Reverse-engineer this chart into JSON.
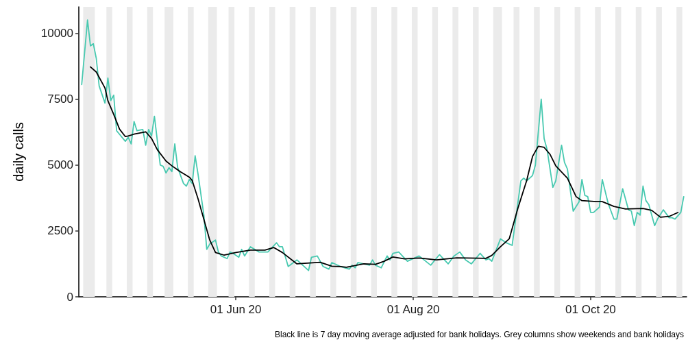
{
  "chart_data": {
    "type": "line",
    "ylabel": "daily calls",
    "annotations": [
      "Black line is 7 day moving average adjusted for bank holidays. Grey columns show weekends and bank holidays"
    ],
    "xlim": [
      "2020-04-08",
      "2020-11-03"
    ],
    "xticks": [
      {
        "value": "2020-06-01",
        "label": "01 Jun 20"
      },
      {
        "value": "2020-08-01",
        "label": "01 Aug 20"
      },
      {
        "value": "2020-10-01",
        "label": "01 Oct 20"
      }
    ],
    "ylim": [
      0,
      11000
    ],
    "yticks": [
      0,
      2500,
      5000,
      7500,
      10000
    ],
    "grid": false,
    "marker": "none",
    "line_style": "solid",
    "series": [
      {
        "color": "#48c9b0",
        "x": [
          "2020-04-09",
          "2020-04-11",
          "2020-04-12",
          "2020-04-13",
          "2020-04-14",
          "2020-04-15",
          "2020-04-17",
          "2020-04-18",
          "2020-04-19",
          "2020-04-20",
          "2020-04-21",
          "2020-04-24",
          "2020-04-25",
          "2020-04-26",
          "2020-04-27",
          "2020-04-28",
          "2020-04-30",
          "2020-05-01",
          "2020-05-02",
          "2020-05-03",
          "2020-05-04",
          "2020-05-06",
          "2020-05-07",
          "2020-05-08",
          "2020-05-09",
          "2020-05-10",
          "2020-05-11",
          "2020-05-12",
          "2020-05-14",
          "2020-05-15",
          "2020-05-16",
          "2020-05-17",
          "2020-05-18",
          "2020-05-19",
          "2020-05-21",
          "2020-05-22",
          "2020-05-23",
          "2020-05-25",
          "2020-05-26",
          "2020-05-27",
          "2020-05-29",
          "2020-05-30",
          "2020-05-31",
          "2020-06-02",
          "2020-06-03",
          "2020-06-04",
          "2020-06-06",
          "2020-06-09",
          "2020-06-12",
          "2020-06-15",
          "2020-06-16",
          "2020-06-17",
          "2020-06-19",
          "2020-06-22",
          "2020-06-26",
          "2020-06-27",
          "2020-06-29",
          "2020-07-01",
          "2020-07-03",
          "2020-07-04",
          "2020-07-07",
          "2020-07-10",
          "2020-07-11",
          "2020-07-12",
          "2020-07-13",
          "2020-07-17",
          "2020-07-18",
          "2020-07-19",
          "2020-07-21",
          "2020-07-23",
          "2020-07-24",
          "2020-07-25",
          "2020-07-27",
          "2020-07-30",
          "2020-07-31",
          "2020-08-03",
          "2020-08-07",
          "2020-08-10",
          "2020-08-13",
          "2020-08-15",
          "2020-08-17",
          "2020-08-19",
          "2020-08-21",
          "2020-08-24",
          "2020-08-26",
          "2020-08-27",
          "2020-08-28",
          "2020-08-31",
          "2020-09-02",
          "2020-09-04",
          "2020-09-07",
          "2020-09-08",
          "2020-09-09",
          "2020-09-11",
          "2020-09-12",
          "2020-09-14",
          "2020-09-15",
          "2020-09-16",
          "2020-09-18",
          "2020-09-19",
          "2020-09-21",
          "2020-09-22",
          "2020-09-23",
          "2020-09-25",
          "2020-09-27",
          "2020-09-28",
          "2020-09-29",
          "2020-09-30",
          "2020-10-01",
          "2020-10-02",
          "2020-10-04",
          "2020-10-05",
          "2020-10-07",
          "2020-10-09",
          "2020-10-10",
          "2020-10-12",
          "2020-10-14",
          "2020-10-15",
          "2020-10-16",
          "2020-10-17",
          "2020-10-18",
          "2020-10-19",
          "2020-10-20",
          "2020-10-21",
          "2020-10-23",
          "2020-10-24",
          "2020-10-26",
          "2020-10-28",
          "2020-10-29",
          "2020-10-30",
          "2020-11-01",
          "2020-11-02"
        ],
        "values": [
          8050,
          10500,
          9520,
          9600,
          9050,
          8000,
          7350,
          8300,
          7450,
          7650,
          6300,
          5900,
          6050,
          5800,
          6650,
          6300,
          6350,
          5750,
          6350,
          6100,
          6850,
          5000,
          4950,
          4700,
          4900,
          4750,
          5800,
          4900,
          4300,
          4200,
          4450,
          4300,
          5350,
          4650,
          3100,
          1800,
          2000,
          2150,
          1700,
          1550,
          1450,
          1700,
          1650,
          1500,
          1800,
          1550,
          1900,
          1700,
          1700,
          2050,
          1900,
          1900,
          1150,
          1400,
          1000,
          1500,
          1550,
          1150,
          1050,
          1300,
          1150,
          1050,
          1200,
          1100,
          1300,
          1200,
          1400,
          1200,
          1100,
          1550,
          1400,
          1650,
          1700,
          1350,
          1400,
          1550,
          1200,
          1600,
          1250,
          1550,
          1700,
          1400,
          1250,
          1650,
          1400,
          1450,
          1350,
          2200,
          2050,
          1950,
          4400,
          4500,
          4400,
          4600,
          5000,
          7500,
          6000,
          5600,
          4150,
          4400,
          5750,
          5100,
          4850,
          3250,
          3600,
          4450,
          3850,
          3800,
          3200,
          3200,
          3400,
          4450,
          3550,
          2950,
          2950,
          4100,
          3300,
          3250,
          2700,
          3200,
          3100,
          4200,
          3650,
          3500,
          2700,
          2950,
          3300,
          3000,
          3000,
          2950,
          3200,
          3800
        ]
      },
      {
        "color": "#000000",
        "x": [
          "2020-04-12",
          "2020-04-14",
          "2020-04-17",
          "2020-04-18",
          "2020-04-20",
          "2020-04-22",
          "2020-04-24",
          "2020-04-25",
          "2020-04-27",
          "2020-05-01",
          "2020-05-03",
          "2020-05-05",
          "2020-05-08",
          "2020-05-10",
          "2020-05-13",
          "2020-05-16",
          "2020-05-17",
          "2020-05-19",
          "2020-05-21",
          "2020-05-23",
          "2020-05-25",
          "2020-05-28",
          "2020-06-01",
          "2020-06-06",
          "2020-06-11",
          "2020-06-14",
          "2020-06-17",
          "2020-06-22",
          "2020-06-30",
          "2020-07-04",
          "2020-07-07",
          "2020-07-09",
          "2020-07-15",
          "2020-07-19",
          "2020-07-22",
          "2020-07-25",
          "2020-07-29",
          "2020-08-03",
          "2020-08-09",
          "2020-08-16",
          "2020-08-26",
          "2020-08-28",
          "2020-08-31",
          "2020-09-03",
          "2020-09-06",
          "2020-09-09",
          "2020-09-11",
          "2020-09-13",
          "2020-09-15",
          "2020-09-17",
          "2020-09-19",
          "2020-09-23",
          "2020-09-26",
          "2020-09-28",
          "2020-10-03",
          "2020-10-05",
          "2020-10-09",
          "2020-10-13",
          "2020-10-19",
          "2020-10-22",
          "2020-10-25",
          "2020-10-28",
          "2020-10-31"
        ],
        "values": [
          8720,
          8530,
          7920,
          7440,
          6920,
          6360,
          6080,
          6100,
          6170,
          6260,
          6010,
          5580,
          5150,
          4970,
          4740,
          4540,
          4410,
          3720,
          2940,
          2160,
          1680,
          1580,
          1680,
          1770,
          1770,
          1870,
          1680,
          1250,
          1310,
          1160,
          1150,
          1120,
          1250,
          1230,
          1350,
          1510,
          1440,
          1470,
          1400,
          1480,
          1460,
          1570,
          1900,
          2200,
          3370,
          4410,
          5320,
          5710,
          5670,
          5410,
          4970,
          4500,
          3800,
          3650,
          3610,
          3610,
          3430,
          3330,
          3350,
          3280,
          3020,
          3050,
          3200
        ]
      }
    ],
    "bands": [
      {
        "axis": "x",
        "from": "2020-04-09T12:00",
        "to": "2020-04-13T12:00",
        "color": "#ebebeb"
      },
      {
        "axis": "x",
        "from": "2020-04-17T12:00",
        "to": "2020-04-19T12:00",
        "color": "#ebebeb"
      },
      {
        "axis": "x",
        "from": "2020-04-24T12:00",
        "to": "2020-04-26T12:00",
        "color": "#ebebeb"
      },
      {
        "axis": "x",
        "from": "2020-05-01T12:00",
        "to": "2020-05-03T12:00",
        "color": "#ebebeb"
      },
      {
        "axis": "x",
        "from": "2020-05-07T12:00",
        "to": "2020-05-10T12:00",
        "color": "#ebebeb"
      },
      {
        "axis": "x",
        "from": "2020-05-15T12:00",
        "to": "2020-05-17T12:00",
        "color": "#ebebeb"
      },
      {
        "axis": "x",
        "from": "2020-05-22T12:00",
        "to": "2020-05-25T12:00",
        "color": "#ebebeb"
      },
      {
        "axis": "x",
        "from": "2020-05-29T12:00",
        "to": "2020-05-31T12:00",
        "color": "#ebebeb"
      },
      {
        "axis": "x",
        "from": "2020-06-05T12:00",
        "to": "2020-06-07T12:00",
        "color": "#ebebeb"
      },
      {
        "axis": "x",
        "from": "2020-06-12T12:00",
        "to": "2020-06-14T12:00",
        "color": "#ebebeb"
      },
      {
        "axis": "x",
        "from": "2020-06-19T12:00",
        "to": "2020-06-21T12:00",
        "color": "#ebebeb"
      },
      {
        "axis": "x",
        "from": "2020-06-26T12:00",
        "to": "2020-06-28T12:00",
        "color": "#ebebeb"
      },
      {
        "axis": "x",
        "from": "2020-07-03T12:00",
        "to": "2020-07-05T12:00",
        "color": "#ebebeb"
      },
      {
        "axis": "x",
        "from": "2020-07-10T12:00",
        "to": "2020-07-12T12:00",
        "color": "#ebebeb"
      },
      {
        "axis": "x",
        "from": "2020-07-17T12:00",
        "to": "2020-07-19T12:00",
        "color": "#ebebeb"
      },
      {
        "axis": "x",
        "from": "2020-07-24T12:00",
        "to": "2020-07-26T12:00",
        "color": "#ebebeb"
      },
      {
        "axis": "x",
        "from": "2020-07-31T12:00",
        "to": "2020-08-02T12:00",
        "color": "#ebebeb"
      },
      {
        "axis": "x",
        "from": "2020-08-07T12:00",
        "to": "2020-08-09T12:00",
        "color": "#ebebeb"
      },
      {
        "axis": "x",
        "from": "2020-08-14T12:00",
        "to": "2020-08-16T12:00",
        "color": "#ebebeb"
      },
      {
        "axis": "x",
        "from": "2020-08-21T12:00",
        "to": "2020-08-23T12:00",
        "color": "#ebebeb"
      },
      {
        "axis": "x",
        "from": "2020-08-28T12:00",
        "to": "2020-08-31T12:00",
        "color": "#ebebeb"
      },
      {
        "axis": "x",
        "from": "2020-09-04T12:00",
        "to": "2020-09-06T12:00",
        "color": "#ebebeb"
      },
      {
        "axis": "x",
        "from": "2020-09-11T12:00",
        "to": "2020-09-13T12:00",
        "color": "#ebebeb"
      },
      {
        "axis": "x",
        "from": "2020-09-18T12:00",
        "to": "2020-09-20T12:00",
        "color": "#ebebeb"
      },
      {
        "axis": "x",
        "from": "2020-09-25T12:00",
        "to": "2020-09-27T12:00",
        "color": "#ebebeb"
      },
      {
        "axis": "x",
        "from": "2020-10-02T12:00",
        "to": "2020-10-04T12:00",
        "color": "#ebebeb"
      },
      {
        "axis": "x",
        "from": "2020-10-09T12:00",
        "to": "2020-10-11T12:00",
        "color": "#ebebeb"
      },
      {
        "axis": "x",
        "from": "2020-10-16T12:00",
        "to": "2020-10-18T12:00",
        "color": "#ebebeb"
      },
      {
        "axis": "x",
        "from": "2020-10-23T12:00",
        "to": "2020-10-25T12:00",
        "color": "#ebebeb"
      },
      {
        "axis": "x",
        "from": "2020-10-30T12:00",
        "to": "2020-11-01T12:00",
        "color": "#ebebeb"
      }
    ]
  }
}
